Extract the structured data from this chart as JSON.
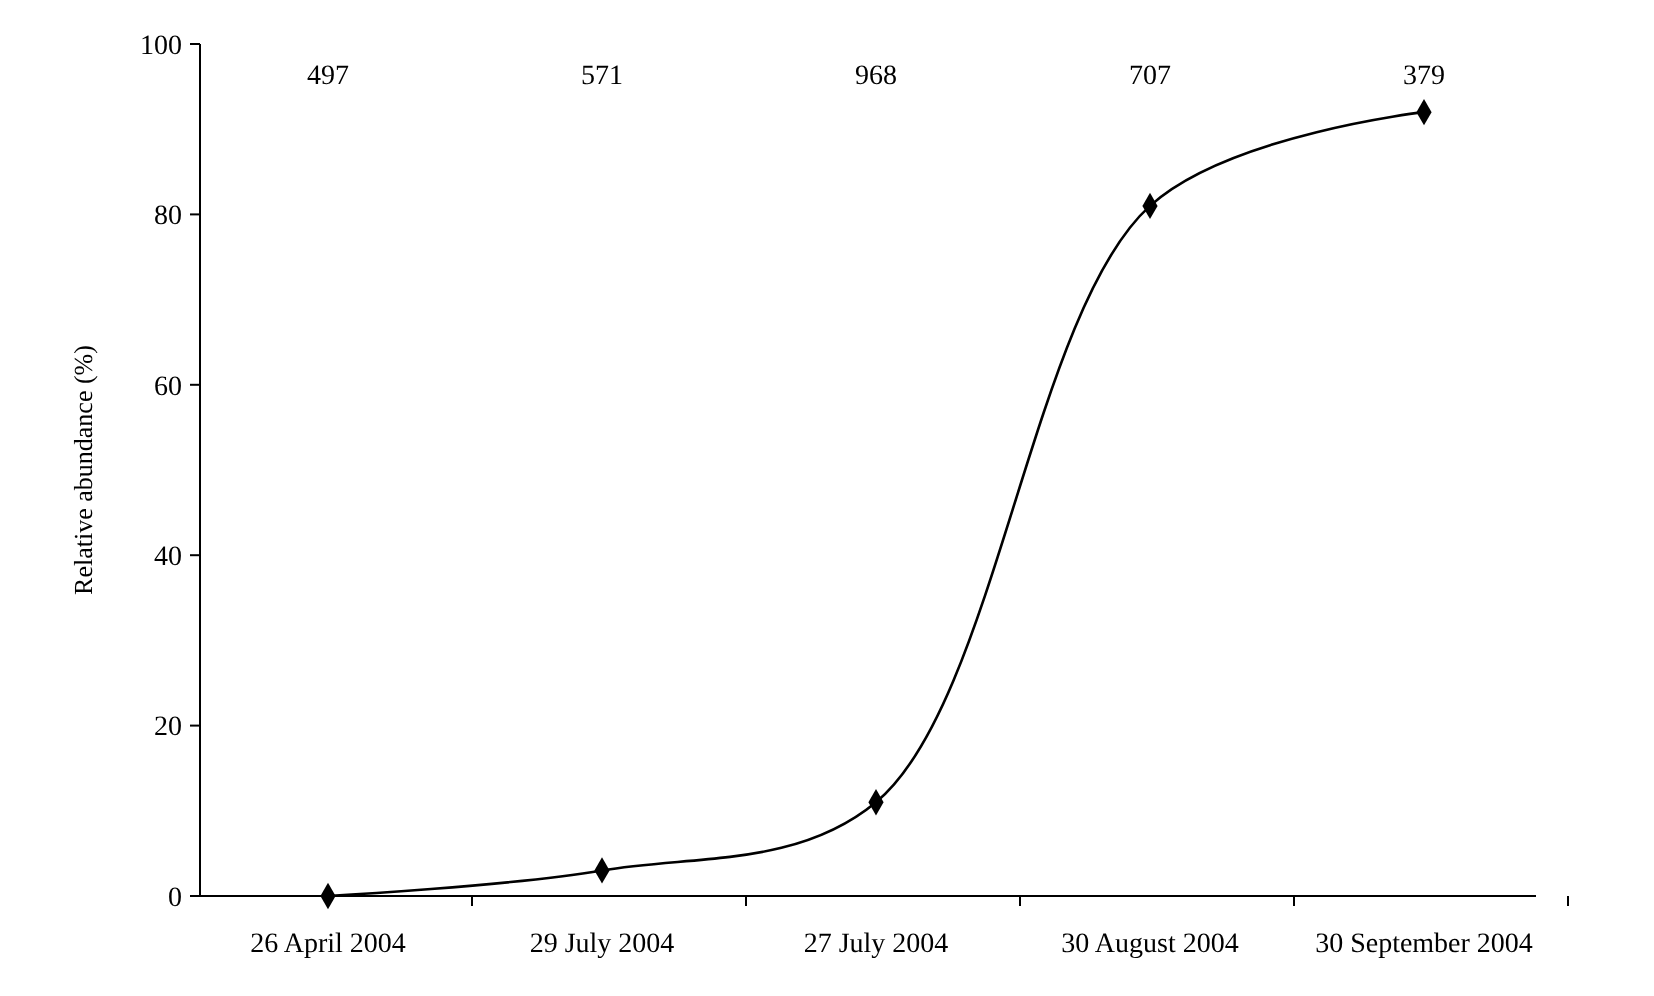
{
  "chart_data": {
    "type": "line",
    "ylabel": "Relative abundance (%)",
    "categories": [
      "26 April 2004",
      "29 July 2004",
      "27 July 2004",
      "30 August 2004",
      "30 September 2004"
    ],
    "series": [
      {
        "color": "#000000",
        "values": [
          0,
          3,
          11,
          81,
          92
        ]
      }
    ],
    "ylim": [
      0,
      100
    ],
    "yticks": [
      0,
      20,
      40,
      60,
      80,
      100
    ],
    "marker": "diamond",
    "grid": false,
    "annotations": [
      "497",
      "571",
      "968",
      "707",
      "379"
    ]
  }
}
